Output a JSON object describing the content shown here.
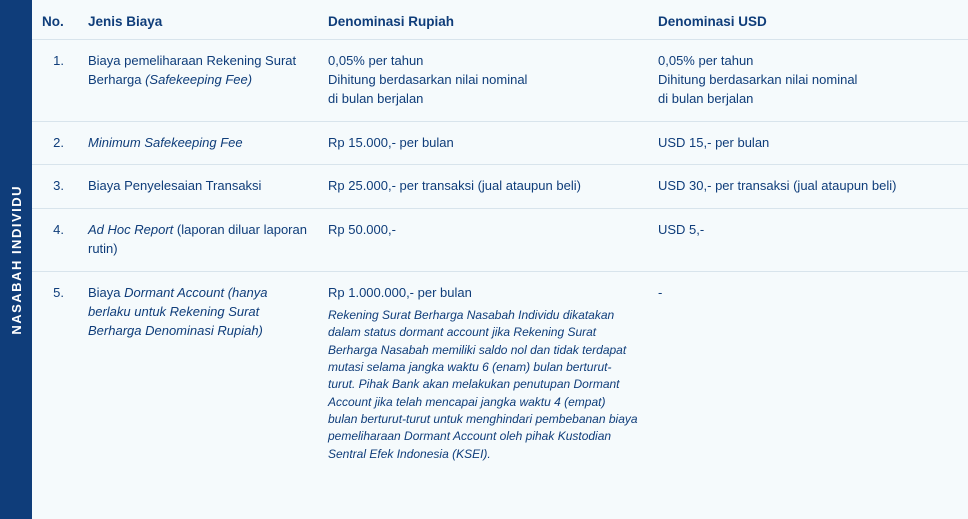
{
  "sideband": {
    "label": "NASABAH INDIVIDU"
  },
  "colors": {
    "brand": "#0f3d7a",
    "panel_bg": "#f5fafc",
    "row_border": "#d8e4ec",
    "text": "#0f3d7a"
  },
  "table": {
    "columns": {
      "no": "No.",
      "jenis": "Jenis Biaya",
      "idr": "Denominasi Rupiah",
      "usd": "Denominasi USD"
    },
    "rows": [
      {
        "no": "1.",
        "jenis_main": "Biaya pemeliharaan Rekening Surat Berharga ",
        "jenis_italic": "(Safekeeping Fee)",
        "idr_main": "0,05% per tahun\nDihitung berdasarkan nilai nominal\ndi bulan berjalan",
        "usd_main": "0,05% per tahun\nDihitung berdasarkan nilai nominal\ndi bulan berjalan"
      },
      {
        "no": "2.",
        "jenis_italic_full": "Minimum Safekeeping Fee",
        "idr_main": "Rp 15.000,- per bulan",
        "usd_main": "USD 15,- per bulan"
      },
      {
        "no": "3.",
        "jenis_main": "Biaya Penyelesaian Transaksi",
        "idr_main": "Rp 25.000,- per transaksi (jual ataupun beli)",
        "usd_main": "USD 30,- per transaksi (jual ataupun beli)"
      },
      {
        "no": "4.",
        "jenis_italic_lead": "Ad Hoc Report",
        "jenis_tail": " (laporan diluar laporan rutin)",
        "idr_main": "Rp 50.000,-",
        "usd_main": "USD 5,-"
      },
      {
        "no": "5.",
        "jenis_main": "Biaya ",
        "jenis_italic": "Dormant Account (hanya berlaku untuk Rekening Surat Berharga Denominasi Rupiah)",
        "idr_main": "Rp 1.000.000,- per bulan",
        "idr_note": "Rekening Surat Berharga Nasabah Individu dikatakan dalam status dormant account jika Rekening Surat Berharga Nasabah memiliki saldo nol dan tidak terdapat mutasi selama jangka waktu 6 (enam) bulan berturut-turut. Pihak Bank akan melakukan penutupan Dormant Account jika telah mencapai jangka waktu 4 (empat) bulan berturut-turut untuk menghindari pembebanan biaya pemeliharaan Dormant Account oleh pihak Kustodian Sentral Efek Indonesia (KSEI).",
        "usd_main": "-"
      }
    ]
  }
}
